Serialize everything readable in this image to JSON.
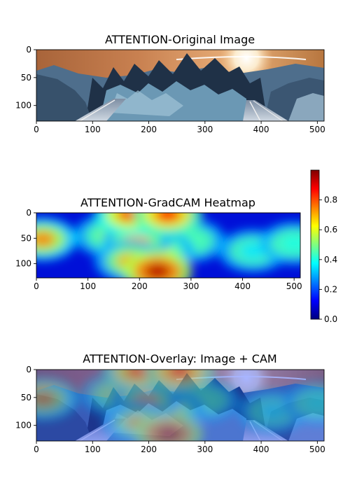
{
  "chart_data": [
    {
      "type": "heatmap",
      "title": "ATTENTION-Original Image",
      "xlim": [
        0,
        512
      ],
      "ylim": [
        128,
        0
      ],
      "xticks": [
        0,
        100,
        200,
        300,
        400,
        500
      ],
      "yticks": [
        0,
        50,
        100
      ],
      "grid": false
    },
    {
      "type": "heatmap",
      "title": "ATTENTION-GradCAM Heatmap",
      "xlim": [
        0,
        512
      ],
      "ylim": [
        128,
        0
      ],
      "xticks": [
        0,
        100,
        200,
        300,
        400,
        500
      ],
      "yticks": [
        0,
        50,
        100
      ],
      "grid": false,
      "colorbar": {
        "cmap": "jet",
        "range": [
          0,
          1
        ],
        "ticks": [
          "0.0",
          "0.2",
          "0.4",
          "0.6",
          "0.8"
        ],
        "placement": "right"
      },
      "hotspots": [
        {
          "x": 235,
          "y": 115,
          "value": 0.95
        },
        {
          "x": 255,
          "y": 3,
          "value": 0.85
        },
        {
          "x": 180,
          "y": 3,
          "value": 0.8
        },
        {
          "x": 210,
          "y": 3,
          "value": 0.75
        },
        {
          "x": 195,
          "y": 55,
          "value": 0.7
        },
        {
          "x": 180,
          "y": 95,
          "value": 0.7
        },
        {
          "x": 12,
          "y": 52,
          "value": 0.75
        },
        {
          "x": 240,
          "y": 75,
          "value": 0.6
        },
        {
          "x": 140,
          "y": 45,
          "value": 0.5
        },
        {
          "x": 300,
          "y": 55,
          "value": 0.45
        },
        {
          "x": 420,
          "y": 75,
          "value": 0.35
        },
        {
          "x": 500,
          "y": 60,
          "value": 0.4
        }
      ]
    },
    {
      "type": "heatmap",
      "title": "ATTENTION-Overlay: Image + CAM",
      "xlim": [
        0,
        512
      ],
      "ylim": [
        128,
        0
      ],
      "xticks": [
        0,
        100,
        200,
        300,
        400,
        500
      ],
      "yticks": [
        0,
        50,
        100
      ],
      "grid": false
    }
  ]
}
